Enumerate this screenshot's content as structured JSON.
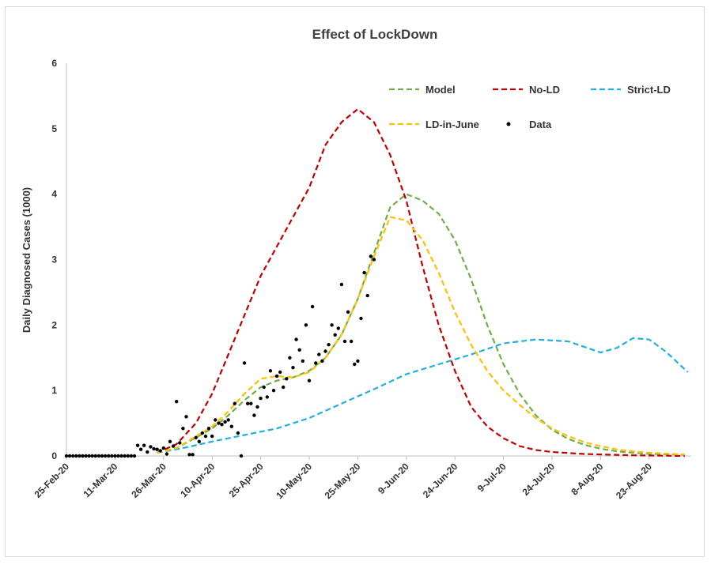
{
  "chart_data": {
    "type": "line",
    "title": "Effect of LockDown",
    "xlabel": "",
    "ylabel": "Daily Diagnosed Cases (1000)",
    "ylim": [
      0,
      6
    ],
    "yticks": [
      "0",
      "1",
      "2",
      "3",
      "4",
      "5",
      "6"
    ],
    "x_tick_labels": [
      "25-Feb-20",
      "11-Mar-20",
      "26-Mar-20",
      "10-Apr-20",
      "25-Apr-20",
      "10-May-20",
      "25-May-20",
      "9-Jun-20",
      "24-Jun-20",
      "9-Jul-20",
      "24-Jul-20",
      "8-Aug-20",
      "23-Aug-20"
    ],
    "xlim": [
      "2020-02-25",
      "2020-09-05"
    ],
    "grid": false,
    "legend_position": "top-right",
    "series": [
      {
        "name": "Model",
        "color": "#70ad47",
        "style": "dashed",
        "points": [
          [
            "2020-03-24",
            0.05
          ],
          [
            "2020-03-30",
            0.12
          ],
          [
            "2020-04-05",
            0.28
          ],
          [
            "2020-04-10",
            0.42
          ],
          [
            "2020-04-15",
            0.62
          ],
          [
            "2020-04-20",
            0.85
          ],
          [
            "2020-04-25",
            1.05
          ],
          [
            "2020-04-30",
            1.15
          ],
          [
            "2020-05-05",
            1.2
          ],
          [
            "2020-05-10",
            1.3
          ],
          [
            "2020-05-15",
            1.5
          ],
          [
            "2020-05-20",
            1.85
          ],
          [
            "2020-05-25",
            2.4
          ],
          [
            "2020-05-30",
            3.1
          ],
          [
            "2020-06-04",
            3.8
          ],
          [
            "2020-06-09",
            4.0
          ],
          [
            "2020-06-14",
            3.9
          ],
          [
            "2020-06-19",
            3.7
          ],
          [
            "2020-06-24",
            3.3
          ],
          [
            "2020-06-29",
            2.7
          ],
          [
            "2020-07-04",
            2.0
          ],
          [
            "2020-07-09",
            1.4
          ],
          [
            "2020-07-14",
            0.95
          ],
          [
            "2020-07-19",
            0.62
          ],
          [
            "2020-07-24",
            0.4
          ],
          [
            "2020-07-29",
            0.26
          ],
          [
            "2020-08-03",
            0.17
          ],
          [
            "2020-08-08",
            0.11
          ],
          [
            "2020-08-13",
            0.07
          ],
          [
            "2020-08-18",
            0.05
          ],
          [
            "2020-08-23",
            0.03
          ],
          [
            "2020-09-03",
            0.02
          ]
        ]
      },
      {
        "name": "No-LD",
        "color": "#c00000",
        "style": "dashed",
        "points": [
          [
            "2020-03-24",
            0.05
          ],
          [
            "2020-03-30",
            0.18
          ],
          [
            "2020-04-05",
            0.5
          ],
          [
            "2020-04-10",
            0.95
          ],
          [
            "2020-04-15",
            1.55
          ],
          [
            "2020-04-20",
            2.15
          ],
          [
            "2020-04-25",
            2.75
          ],
          [
            "2020-04-30",
            3.2
          ],
          [
            "2020-05-05",
            3.65
          ],
          [
            "2020-05-10",
            4.1
          ],
          [
            "2020-05-15",
            4.75
          ],
          [
            "2020-05-20",
            5.1
          ],
          [
            "2020-05-25",
            5.3
          ],
          [
            "2020-05-30",
            5.1
          ],
          [
            "2020-06-04",
            4.6
          ],
          [
            "2020-06-09",
            3.9
          ],
          [
            "2020-06-14",
            2.9
          ],
          [
            "2020-06-19",
            2.0
          ],
          [
            "2020-06-24",
            1.3
          ],
          [
            "2020-06-29",
            0.75
          ],
          [
            "2020-07-04",
            0.45
          ],
          [
            "2020-07-09",
            0.27
          ],
          [
            "2020-07-14",
            0.15
          ],
          [
            "2020-07-19",
            0.09
          ],
          [
            "2020-07-24",
            0.06
          ],
          [
            "2020-08-03",
            0.03
          ],
          [
            "2020-08-18",
            0.01
          ],
          [
            "2020-09-03",
            0.0
          ]
        ]
      },
      {
        "name": "Strict-LD",
        "color": "#1fb0e0",
        "style": "dashed",
        "points": [
          [
            "2020-03-24",
            0.05
          ],
          [
            "2020-04-01",
            0.12
          ],
          [
            "2020-04-10",
            0.22
          ],
          [
            "2020-04-20",
            0.32
          ],
          [
            "2020-04-30",
            0.42
          ],
          [
            "2020-05-10",
            0.58
          ],
          [
            "2020-05-20",
            0.8
          ],
          [
            "2020-05-30",
            1.02
          ],
          [
            "2020-06-09",
            1.25
          ],
          [
            "2020-06-19",
            1.4
          ],
          [
            "2020-06-29",
            1.55
          ],
          [
            "2020-07-09",
            1.72
          ],
          [
            "2020-07-19",
            1.78
          ],
          [
            "2020-07-29",
            1.75
          ],
          [
            "2020-08-08",
            1.58
          ],
          [
            "2020-08-13",
            1.65
          ],
          [
            "2020-08-18",
            1.8
          ],
          [
            "2020-08-23",
            1.78
          ],
          [
            "2020-08-28",
            1.6
          ],
          [
            "2020-09-04",
            1.28
          ]
        ]
      },
      {
        "name": "LD-in-June",
        "color": "#ffc000",
        "style": "dashed",
        "points": [
          [
            "2020-03-24",
            0.05
          ],
          [
            "2020-03-30",
            0.12
          ],
          [
            "2020-04-05",
            0.3
          ],
          [
            "2020-04-10",
            0.45
          ],
          [
            "2020-04-15",
            0.68
          ],
          [
            "2020-04-20",
            0.95
          ],
          [
            "2020-04-25",
            1.18
          ],
          [
            "2020-04-30",
            1.22
          ],
          [
            "2020-05-05",
            1.2
          ],
          [
            "2020-05-10",
            1.28
          ],
          [
            "2020-05-15",
            1.5
          ],
          [
            "2020-05-20",
            1.85
          ],
          [
            "2020-05-25",
            2.4
          ],
          [
            "2020-05-30",
            3.05
          ],
          [
            "2020-06-04",
            3.65
          ],
          [
            "2020-06-09",
            3.6
          ],
          [
            "2020-06-14",
            3.3
          ],
          [
            "2020-06-19",
            2.8
          ],
          [
            "2020-06-24",
            2.2
          ],
          [
            "2020-06-29",
            1.7
          ],
          [
            "2020-07-04",
            1.3
          ],
          [
            "2020-07-09",
            1.0
          ],
          [
            "2020-07-14",
            0.78
          ],
          [
            "2020-07-19",
            0.58
          ],
          [
            "2020-07-24",
            0.42
          ],
          [
            "2020-07-29",
            0.3
          ],
          [
            "2020-08-03",
            0.21
          ],
          [
            "2020-08-08",
            0.15
          ],
          [
            "2020-08-13",
            0.1
          ],
          [
            "2020-08-18",
            0.07
          ],
          [
            "2020-08-23",
            0.05
          ],
          [
            "2020-09-03",
            0.02
          ]
        ]
      }
    ],
    "data_points": {
      "name": "Data",
      "color": "#000000",
      "points": [
        [
          "2020-02-25",
          0
        ],
        [
          "2020-02-26",
          0
        ],
        [
          "2020-02-27",
          0
        ],
        [
          "2020-02-28",
          0
        ],
        [
          "2020-02-29",
          0
        ],
        [
          "2020-03-01",
          0
        ],
        [
          "2020-03-02",
          0
        ],
        [
          "2020-03-03",
          0
        ],
        [
          "2020-03-04",
          0
        ],
        [
          "2020-03-05",
          0
        ],
        [
          "2020-03-06",
          0
        ],
        [
          "2020-03-07",
          0
        ],
        [
          "2020-03-08",
          0
        ],
        [
          "2020-03-09",
          0
        ],
        [
          "2020-03-10",
          0
        ],
        [
          "2020-03-11",
          0
        ],
        [
          "2020-03-12",
          0
        ],
        [
          "2020-03-13",
          0
        ],
        [
          "2020-03-14",
          0
        ],
        [
          "2020-03-15",
          0
        ],
        [
          "2020-03-16",
          0
        ],
        [
          "2020-03-17",
          0
        ],
        [
          "2020-03-18",
          0.16
        ],
        [
          "2020-03-19",
          0.1
        ],
        [
          "2020-03-20",
          0.16
        ],
        [
          "2020-03-21",
          0.06
        ],
        [
          "2020-03-22",
          0.14
        ],
        [
          "2020-03-23",
          0.11
        ],
        [
          "2020-03-24",
          0.1
        ],
        [
          "2020-03-25",
          0.08
        ],
        [
          "2020-03-26",
          0.12
        ],
        [
          "2020-03-27",
          0.03
        ],
        [
          "2020-03-28",
          0.22
        ],
        [
          "2020-03-29",
          0.15
        ],
        [
          "2020-03-30",
          0.83
        ],
        [
          "2020-03-31",
          0.2
        ],
        [
          "2020-04-01",
          0.42
        ],
        [
          "2020-04-02",
          0.6
        ],
        [
          "2020-04-03",
          0.02
        ],
        [
          "2020-04-04",
          0.02
        ],
        [
          "2020-04-05",
          0.28
        ],
        [
          "2020-04-06",
          0.22
        ],
        [
          "2020-04-07",
          0.35
        ],
        [
          "2020-04-08",
          0.3
        ],
        [
          "2020-04-09",
          0.42
        ],
        [
          "2020-04-10",
          0.3
        ],
        [
          "2020-04-11",
          0.55
        ],
        [
          "2020-04-12",
          0.5
        ],
        [
          "2020-04-13",
          0.48
        ],
        [
          "2020-04-14",
          0.52
        ],
        [
          "2020-04-15",
          0.55
        ],
        [
          "2020-04-16",
          0.45
        ],
        [
          "2020-04-17",
          0.8
        ],
        [
          "2020-04-18",
          0.35
        ],
        [
          "2020-04-19",
          0.0
        ],
        [
          "2020-04-20",
          1.42
        ],
        [
          "2020-04-21",
          0.8
        ],
        [
          "2020-04-22",
          0.8
        ],
        [
          "2020-04-23",
          0.62
        ],
        [
          "2020-04-24",
          0.75
        ],
        [
          "2020-04-25",
          0.88
        ],
        [
          "2020-04-26",
          1.05
        ],
        [
          "2020-04-27",
          0.9
        ],
        [
          "2020-04-28",
          1.3
        ],
        [
          "2020-04-29",
          1.0
        ],
        [
          "2020-04-30",
          1.22
        ],
        [
          "2020-05-01",
          1.28
        ],
        [
          "2020-05-02",
          1.05
        ],
        [
          "2020-05-03",
          1.18
        ],
        [
          "2020-05-04",
          1.5
        ],
        [
          "2020-05-05",
          1.35
        ],
        [
          "2020-05-06",
          1.78
        ],
        [
          "2020-05-07",
          1.62
        ],
        [
          "2020-05-08",
          1.45
        ],
        [
          "2020-05-09",
          2.0
        ],
        [
          "2020-05-10",
          1.15
        ],
        [
          "2020-05-11",
          2.28
        ],
        [
          "2020-05-12",
          1.42
        ],
        [
          "2020-05-13",
          1.55
        ],
        [
          "2020-05-14",
          1.45
        ],
        [
          "2020-05-15",
          1.6
        ],
        [
          "2020-05-16",
          1.7
        ],
        [
          "2020-05-17",
          2.0
        ],
        [
          "2020-05-18",
          1.85
        ],
        [
          "2020-05-19",
          1.95
        ],
        [
          "2020-05-20",
          2.62
        ],
        [
          "2020-05-21",
          1.75
        ],
        [
          "2020-05-22",
          2.2
        ],
        [
          "2020-05-23",
          1.75
        ],
        [
          "2020-05-24",
          1.4
        ],
        [
          "2020-05-25",
          1.45
        ],
        [
          "2020-05-26",
          2.1
        ],
        [
          "2020-05-27",
          2.8
        ],
        [
          "2020-05-28",
          2.45
        ],
        [
          "2020-05-29",
          3.05
        ],
        [
          "2020-05-30",
          3.0
        ]
      ]
    }
  }
}
